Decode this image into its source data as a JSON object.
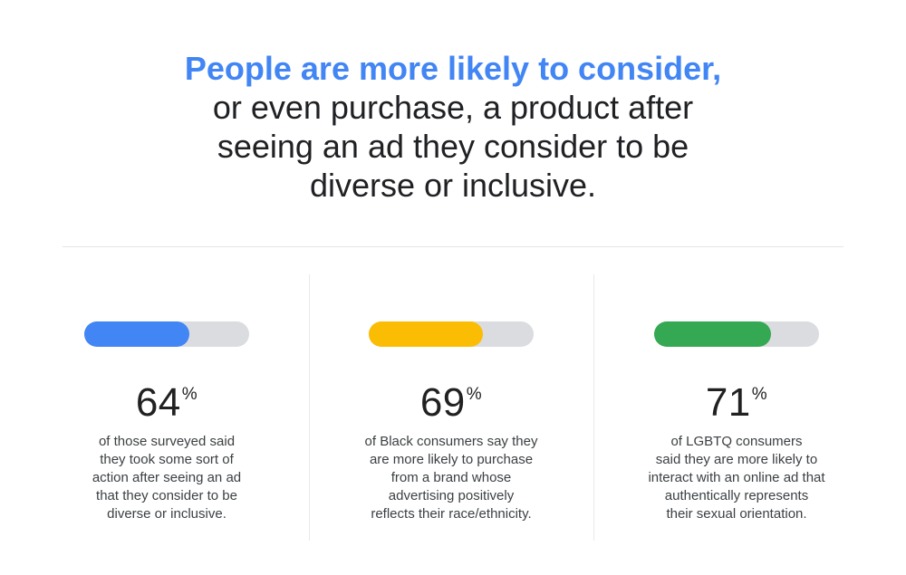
{
  "page": {
    "title_highlight": "People are more likely to consider,",
    "title_rest": "or even purchase, a product after\nseeing an ad they consider to be\ndiverse or inclusive.",
    "percent_symbol": "%"
  },
  "colors": {
    "title_highlight_blue": "#4285F4",
    "title_text": "#202124",
    "bar_track_gray": "#DADCE0",
    "divider_gray": "#E4E4E4",
    "stat_blue": "#4285F4",
    "stat_yellow": "#FBBC04",
    "stat_green": "#34A853"
  },
  "stats": [
    {
      "value": "64",
      "percent": 64,
      "bar_color": "#4285F4",
      "description": "of those surveyed said\nthey took some sort of\naction after seeing an ad\nthat they consider to be\ndiverse or inclusive."
    },
    {
      "value": "69",
      "percent": 69,
      "bar_color": "#FBBC04",
      "description": "of Black consumers say they\nare more likely to purchase\nfrom a brand whose\nadvertising positively\nreflects their race/ethnicity."
    },
    {
      "value": "71",
      "percent": 71,
      "bar_color": "#34A853",
      "description": "of LGBTQ consumers\nsaid they are more likely to\ninteract with an online ad that\nauthentically represents\ntheir sexual orientation."
    }
  ],
  "chart_data": {
    "type": "bar",
    "title": "People are more likely to consider, or even purchase, a product after seeing an ad they consider to be diverse or inclusive.",
    "categories": [
      "of those surveyed said they took some sort of action after seeing an ad that they consider to be diverse or inclusive.",
      "of Black consumers say they are more likely to purchase from a brand whose advertising positively reflects their race/ethnicity.",
      "of LGBTQ consumers said they are more likely to interact with an online ad that authentically represents their sexual orientation."
    ],
    "values": [
      64,
      69,
      71
    ],
    "unit": "%",
    "xlim": [
      0,
      100
    ],
    "orientation": "horizontal",
    "colors": [
      "#4285F4",
      "#FBBC04",
      "#34A853"
    ],
    "grid": false,
    "legend": false
  }
}
